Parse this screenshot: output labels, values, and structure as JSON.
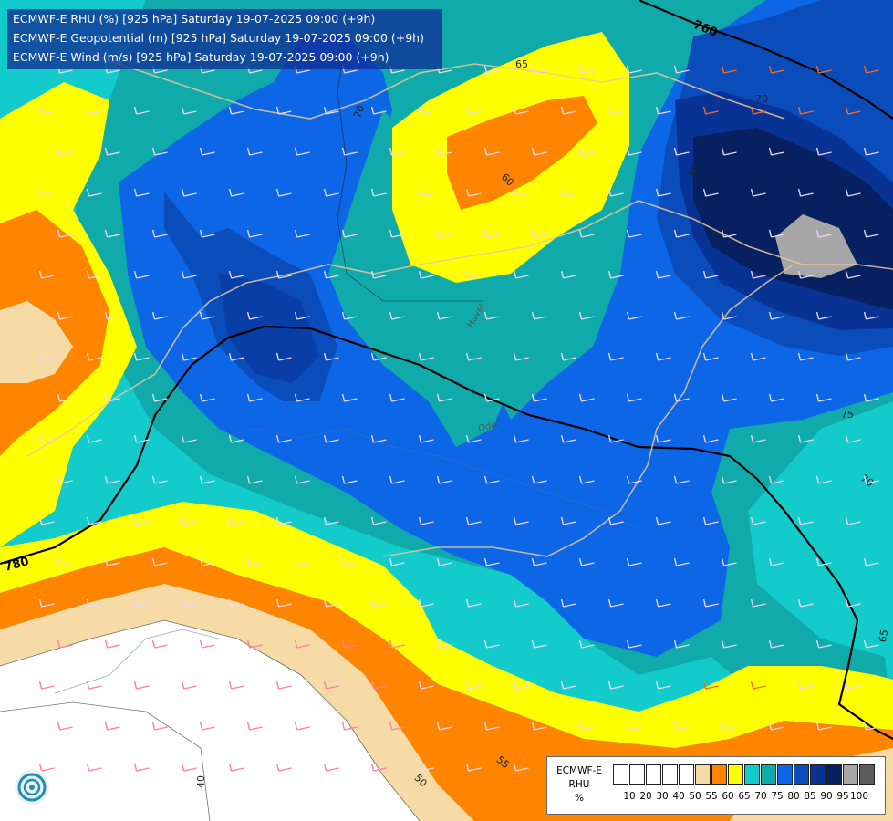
{
  "header": {
    "line1": "ECMWF-E RHU (%) [925 hPa] Saturday 19-07-2025 09:00 (+9h)",
    "line2": "ECMWF-E Geopotential (m) [925 hPa] Saturday 19-07-2025 09:00 (+9h)",
    "line3": "ECMWF-E Wind (m/s) [925 hPa] Saturday 19-07-2025 09:00 (+9h)"
  },
  "geopotential_labels": [
    "760",
    "780"
  ],
  "rhu_contour_labels": [
    "65",
    "70",
    "60",
    "75",
    "70",
    "65",
    "40",
    "50",
    "55",
    "80",
    "70"
  ],
  "place_labels": [
    "Havel",
    "Oder"
  ],
  "legend": {
    "title_lines": [
      "ECMWF-E",
      "RHU",
      "%"
    ],
    "swatches": [
      {
        "color": "#ffffff"
      },
      {
        "color": "#ffffff"
      },
      {
        "color": "#ffffff"
      },
      {
        "color": "#ffffff"
      },
      {
        "color": "#ffffff"
      },
      {
        "color": "#f7dba7"
      },
      {
        "color": "#ff8500"
      },
      {
        "color": "#ffff00"
      },
      {
        "color": "#13cbcb"
      },
      {
        "color": "#10aaaa"
      },
      {
        "color": "#0c66e6"
      },
      {
        "color": "#0a4cba"
      },
      {
        "color": "#083394"
      },
      {
        "color": "#062060"
      },
      {
        "color": "#a7a7a7"
      },
      {
        "color": "#5c5c5c"
      }
    ],
    "ticks": [
      "10",
      "20",
      "30",
      "40",
      "50",
      "55",
      "60",
      "65",
      "70",
      "75",
      "80",
      "85",
      "90",
      "95",
      "100"
    ]
  },
  "colors": {
    "white": "#ffffff",
    "tan": "#f7dba7",
    "orange": "#ff8500",
    "yellow": "#ffff00",
    "cyan": "#13cbcb",
    "teal": "#10aaaa",
    "blue": "#0c66e6",
    "blue2": "#0a4cba",
    "navy": "#083394",
    "darknavy": "#062060",
    "grey": "#a7a7a7"
  }
}
